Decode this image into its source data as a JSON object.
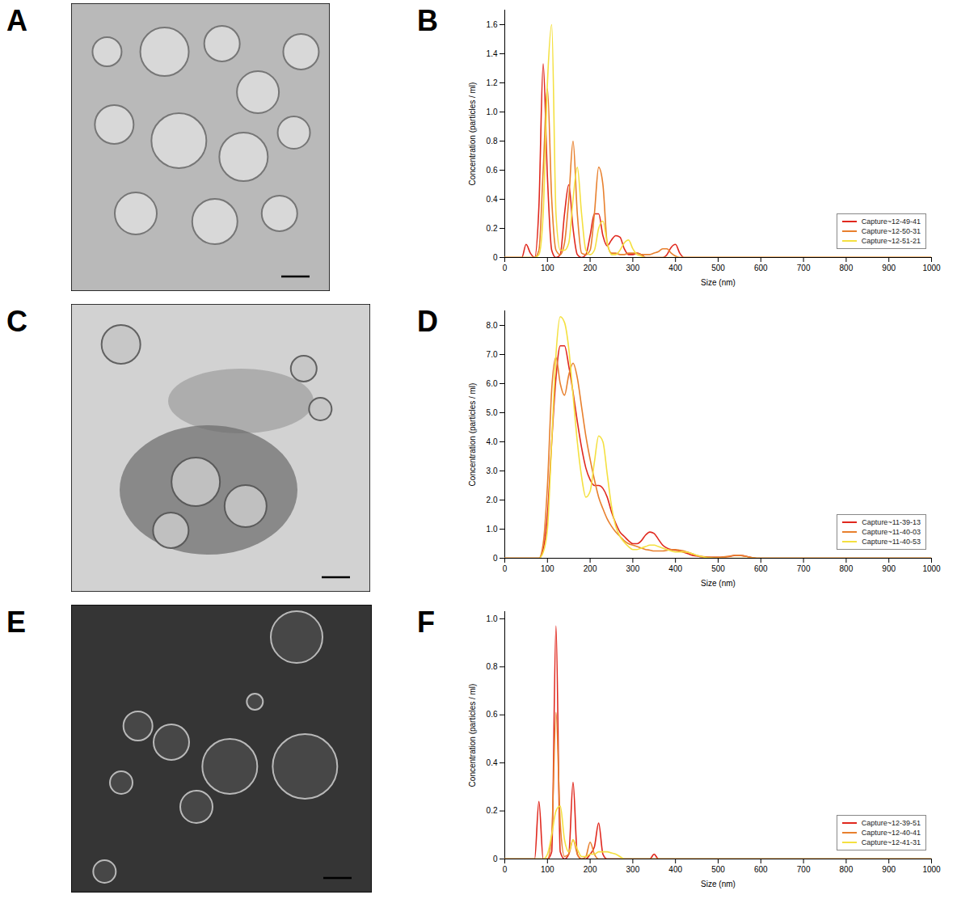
{
  "image_panels": [
    {
      "panel": "A"
    },
    {
      "panel": "C"
    },
    {
      "panel": "E"
    }
  ],
  "chart_data": [
    {
      "type": "line",
      "panel": "B",
      "x_label": "Size (nm)",
      "y_label": "Concentration (particles / ml)",
      "x": [
        0,
        10,
        20,
        30,
        40,
        50,
        60,
        70,
        80,
        90,
        100,
        110,
        120,
        130,
        140,
        150,
        160,
        170,
        180,
        190,
        200,
        210,
        220,
        230,
        240,
        250,
        260,
        270,
        280,
        290,
        300,
        310,
        320,
        330,
        340,
        350,
        360,
        370,
        380,
        390,
        400,
        410,
        420,
        430,
        440,
        450,
        1000
      ],
      "series": [
        {
          "name": "Capture~12-49-41",
          "color": "#e0281e",
          "values": [
            0,
            0,
            0,
            0,
            0,
            0.09,
            0.03,
            0,
            0.35,
            1.33,
            0.55,
            0.05,
            0,
            0.02,
            0.3,
            0.5,
            0.2,
            0.02,
            0,
            0.02,
            0.15,
            0.3,
            0.3,
            0.15,
            0.08,
            0.12,
            0.15,
            0.14,
            0.06,
            0.02,
            0.02,
            0.03,
            0.02,
            0,
            0,
            0,
            0,
            0,
            0.02,
            0.07,
            0.09,
            0.03,
            0,
            0,
            0,
            0,
            0
          ]
        },
        {
          "name": "Capture~12-50-31",
          "color": "#e8802e",
          "values": [
            0,
            0,
            0,
            0,
            0,
            0,
            0,
            0,
            0.05,
            0.6,
            1.16,
            0.4,
            0.05,
            0.02,
            0.1,
            0.4,
            0.8,
            0.3,
            0.03,
            0.02,
            0.05,
            0.3,
            0.62,
            0.5,
            0.1,
            0.03,
            0.03,
            0.02,
            0.02,
            0.03,
            0.03,
            0.03,
            0.02,
            0.02,
            0.02,
            0.03,
            0.04,
            0.06,
            0.06,
            0.03,
            0.01,
            0,
            0,
            0,
            0,
            0,
            0
          ]
        },
        {
          "name": "Capture~12-51-21",
          "color": "#f4e040",
          "values": [
            0,
            0,
            0,
            0,
            0,
            0,
            0,
            0,
            0.02,
            0.3,
            1.2,
            1.6,
            0.3,
            0.05,
            0.05,
            0.1,
            0.4,
            0.62,
            0.3,
            0.05,
            0.02,
            0.05,
            0.2,
            0.25,
            0.1,
            0.02,
            0.02,
            0.05,
            0.1,
            0.12,
            0.06,
            0.02,
            0.01,
            0,
            0,
            0,
            0,
            0,
            0,
            0,
            0,
            0,
            0,
            0,
            0,
            0,
            0
          ]
        }
      ],
      "xlim": [
        0,
        1000
      ],
      "xticks": [
        0,
        100,
        200,
        300,
        400,
        500,
        600,
        700,
        800,
        900,
        1000
      ],
      "ylim": [
        0,
        1.7
      ],
      "yticks": [
        0,
        0.2,
        0.4,
        0.6,
        0.8,
        {
          "value": 1,
          "label": "1.0"
        },
        1.2,
        1.4,
        1.6
      ],
      "legend": "lower right",
      "grid": false
    },
    {
      "type": "line",
      "panel": "D",
      "x_label": "Size (nm)",
      "y_label": "Concentration (particles / ml)",
      "x": [
        0,
        10,
        20,
        30,
        40,
        50,
        60,
        70,
        80,
        90,
        100,
        110,
        120,
        130,
        140,
        150,
        160,
        170,
        180,
        190,
        200,
        210,
        220,
        230,
        240,
        250,
        260,
        270,
        280,
        290,
        300,
        310,
        320,
        330,
        340,
        350,
        360,
        370,
        380,
        390,
        400,
        410,
        420,
        430,
        440,
        450,
        460,
        470,
        480,
        490,
        500,
        510,
        520,
        530,
        540,
        550,
        560,
        570,
        580,
        590,
        600,
        1000
      ],
      "series": [
        {
          "name": "Capture~11-39-13",
          "color": "#e0281e",
          "values": [
            0,
            0,
            0,
            0,
            0,
            0,
            0,
            0,
            0,
            0.3,
            1.5,
            4.0,
            6.2,
            7.3,
            7.3,
            6.6,
            5.7,
            4.7,
            3.8,
            3.1,
            2.7,
            2.5,
            2.5,
            2.4,
            2.1,
            1.6,
            1.2,
            0.9,
            0.75,
            0.6,
            0.5,
            0.5,
            0.6,
            0.8,
            0.9,
            0.85,
            0.65,
            0.45,
            0.35,
            0.3,
            0.28,
            0.25,
            0.2,
            0.15,
            0.1,
            0.08,
            0.05,
            0.04,
            0.03,
            0.03,
            0.03,
            0.04,
            0.05,
            0.07,
            0.1,
            0.1,
            0.08,
            0.05,
            0.02,
            0,
            0,
            0
          ]
        },
        {
          "name": "Capture~11-40-03",
          "color": "#e8802e",
          "values": [
            0,
            0,
            0,
            0,
            0,
            0,
            0,
            0,
            0,
            0.5,
            2.5,
            5.8,
            6.9,
            6.0,
            5.6,
            6.3,
            6.7,
            6.2,
            5.2,
            4.2,
            3.4,
            2.7,
            2.1,
            1.7,
            1.35,
            1.1,
            0.9,
            0.75,
            0.6,
            0.5,
            0.45,
            0.4,
            0.35,
            0.3,
            0.28,
            0.25,
            0.25,
            0.25,
            0.27,
            0.3,
            0.3,
            0.28,
            0.25,
            0.2,
            0.15,
            0.1,
            0.07,
            0.05,
            0.04,
            0.03,
            0.03,
            0.04,
            0.06,
            0.08,
            0.1,
            0.1,
            0.08,
            0.05,
            0.02,
            0,
            0,
            0
          ]
        },
        {
          "name": "Capture~11-40-53",
          "color": "#f4e040",
          "values": [
            0,
            0,
            0,
            0,
            0,
            0,
            0,
            0,
            0,
            0.2,
            1.0,
            4.0,
            7.0,
            8.3,
            8.1,
            7.2,
            5.6,
            4.0,
            2.8,
            2.1,
            2.3,
            3.3,
            4.2,
            4.0,
            2.9,
            1.8,
            1.1,
            0.75,
            0.55,
            0.4,
            0.3,
            0.3,
            0.35,
            0.4,
            0.45,
            0.45,
            0.4,
            0.35,
            0.3,
            0.25,
            0.22,
            0.22,
            0.22,
            0.2,
            0.15,
            0.1,
            0.06,
            0.03,
            0.01,
            0,
            0,
            0,
            0,
            0,
            0,
            0,
            0,
            0,
            0,
            0,
            0,
            0
          ]
        }
      ],
      "xlim": [
        0,
        1000
      ],
      "xticks": [
        0,
        100,
        200,
        300,
        400,
        500,
        600,
        700,
        800,
        900,
        1000
      ],
      "ylim": [
        0,
        8.5
      ],
      "yticks": [
        0,
        {
          "value": 1,
          "label": "1.0"
        },
        {
          "value": 2,
          "label": "2.0"
        },
        {
          "value": 3,
          "label": "3.0"
        },
        {
          "value": 4,
          "label": "4.0"
        },
        {
          "value": 5,
          "label": "5.0"
        },
        {
          "value": 6,
          "label": "6.0"
        },
        {
          "value": 7,
          "label": "7.0"
        },
        {
          "value": 8,
          "label": "8.0"
        }
      ],
      "legend": "lower right",
      "grid": false
    },
    {
      "type": "line",
      "panel": "F",
      "x_label": "Size (nm)",
      "y_label": "Concentration (particles / ml)",
      "x": [
        0,
        10,
        20,
        30,
        40,
        50,
        60,
        70,
        80,
        90,
        100,
        110,
        120,
        130,
        140,
        150,
        160,
        170,
        180,
        190,
        200,
        210,
        220,
        230,
        240,
        250,
        260,
        270,
        280,
        290,
        300,
        310,
        320,
        330,
        340,
        350,
        360,
        370,
        380,
        390,
        400,
        1000
      ],
      "series": [
        {
          "name": "Capture~12-39-51",
          "color": "#e0281e",
          "values": [
            0,
            0,
            0,
            0,
            0,
            0,
            0,
            0,
            0.24,
            0,
            0,
            0.03,
            0.97,
            0.03,
            0,
            0.02,
            0.32,
            0.02,
            0,
            0,
            0.02,
            0.05,
            0.15,
            0.02,
            0,
            0,
            0,
            0,
            0,
            0,
            0,
            0,
            0,
            0,
            0,
            0.02,
            0,
            0,
            0,
            0,
            0,
            0
          ]
        },
        {
          "name": "Capture~12-40-41",
          "color": "#e8802e",
          "values": [
            0,
            0,
            0,
            0,
            0,
            0,
            0,
            0,
            0,
            0,
            0,
            0.1,
            0.61,
            0.15,
            0.01,
            0.02,
            0.08,
            0.02,
            0,
            0.01,
            0.07,
            0.02,
            0,
            0,
            0,
            0,
            0,
            0,
            0,
            0,
            0,
            0,
            0,
            0,
            0,
            0,
            0,
            0,
            0,
            0,
            0,
            0
          ]
        },
        {
          "name": "Capture~12-41-31",
          "color": "#f4e040",
          "values": [
            0,
            0,
            0,
            0,
            0,
            0,
            0,
            0,
            0,
            0,
            0.02,
            0.1,
            0.2,
            0.22,
            0.08,
            0.03,
            0.08,
            0.04,
            0.01,
            0.01,
            0.02,
            0.02,
            0.03,
            0.03,
            0.03,
            0.025,
            0.02,
            0.01,
            0,
            0,
            0,
            0,
            0,
            0,
            0,
            0,
            0,
            0,
            0,
            0,
            0,
            0
          ]
        }
      ],
      "xlim": [
        0,
        1000
      ],
      "xticks": [
        0,
        100,
        200,
        300,
        400,
        500,
        600,
        700,
        800,
        900,
        1000
      ],
      "ylim": [
        0,
        1.03
      ],
      "yticks": [
        0,
        0.2,
        0.4,
        0.6,
        0.8,
        {
          "value": 1,
          "label": "1.0"
        }
      ],
      "legend": "lower right",
      "grid": false
    }
  ]
}
